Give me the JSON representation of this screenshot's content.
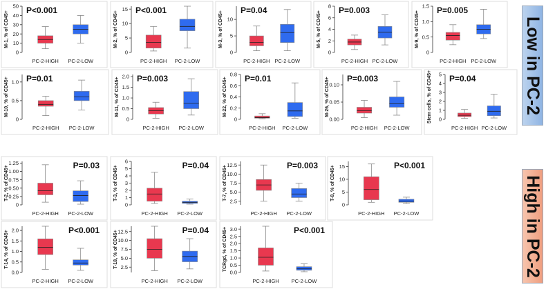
{
  "banners": {
    "low": "Low in PC-2",
    "high": "High in PC-2"
  },
  "chart_data": [
    {
      "type": "box",
      "ylabel": "M-1, % of CD45+",
      "pvalue": "P<0.001",
      "categories": [
        "PC-2-HIGH",
        "PC-2-LOW"
      ],
      "yticks": [
        "0",
        "10",
        "20",
        "30",
        "40",
        "50"
      ],
      "ylim": [
        0,
        50
      ],
      "series": [
        {
          "name": "PC-2-HIGH",
          "min": 4,
          "q1": 10,
          "median": 14,
          "q3": 18,
          "max": 28,
          "outliers": []
        },
        {
          "name": "PC-2-LOW",
          "min": 10,
          "q1": 20,
          "median": 25,
          "q3": 30,
          "max": 40,
          "outliers": []
        }
      ]
    },
    {
      "type": "box",
      "ylabel": "M-2, % of CD45+",
      "pvalue": "P<0.001",
      "categories": [
        "PC-2-HIGH",
        "PC-2-LOW"
      ],
      "yticks": [
        "0",
        "5",
        "10",
        "15"
      ],
      "ylim": [
        0,
        16
      ],
      "series": [
        {
          "name": "PC-2-HIGH",
          "min": 0.5,
          "q1": 1.5,
          "median": 3.5,
          "q3": 6,
          "max": 9,
          "outliers": []
        },
        {
          "name": "PC-2-LOW",
          "min": 1.5,
          "q1": 7.5,
          "median": 9,
          "q3": 11.5,
          "max": 16,
          "outliers": []
        }
      ]
    },
    {
      "type": "box",
      "ylabel": "M-3, % of CD45+",
      "pvalue": "P=0.04",
      "categories": [
        "PC-2-HIGH",
        "PC-2-LOW"
      ],
      "yticks": [
        "0",
        "5",
        "10"
      ],
      "ylim": [
        0,
        14
      ],
      "series": [
        {
          "name": "PC-2-HIGH",
          "min": 0.5,
          "q1": 2,
          "median": 3,
          "q3": 5,
          "max": 8,
          "outliers": []
        },
        {
          "name": "PC-2-LOW",
          "min": 0.5,
          "q1": 3,
          "median": 6,
          "q3": 8.5,
          "max": 13,
          "outliers": []
        }
      ]
    },
    {
      "type": "box",
      "ylabel": "M-5, % of CD45+",
      "pvalue": "P=0.003",
      "categories": [
        "PC-2-HIGH",
        "PC-2-LOW"
      ],
      "yticks": [
        "0",
        "2",
        "4",
        "6",
        "8"
      ],
      "ylim": [
        0,
        8
      ],
      "series": [
        {
          "name": "PC-2-HIGH",
          "min": 0.5,
          "q1": 1.3,
          "median": 1.8,
          "q3": 2.3,
          "max": 3,
          "outliers": []
        },
        {
          "name": "PC-2-LOW",
          "min": 1.3,
          "q1": 2.5,
          "median": 3.5,
          "q3": 4.5,
          "max": 6.5,
          "outliers": []
        }
      ]
    },
    {
      "type": "box",
      "ylabel": "M-9, % of CD45+",
      "pvalue": "P=0.005",
      "categories": [
        "PC-2-HIGH",
        "PC-2-LOW"
      ],
      "yticks": [
        "0",
        "0.5",
        "1.0",
        "1.5"
      ],
      "ylim": [
        0,
        1.5
      ],
      "series": [
        {
          "name": "PC-2-HIGH",
          "min": 0.25,
          "q1": 0.4,
          "median": 0.55,
          "q3": 0.65,
          "max": 0.9,
          "outliers": []
        },
        {
          "name": "PC-2-LOW",
          "min": 0.45,
          "q1": 0.6,
          "median": 0.75,
          "q3": 0.9,
          "max": 1.4,
          "outliers": []
        }
      ]
    },
    {
      "type": "box",
      "ylabel": "M-10, % of CD45+",
      "pvalue": "P=0.01",
      "categories": [
        "PC-2-HIGH",
        "PC-2-LOW"
      ],
      "yticks": [
        "0",
        "0.5",
        "1.0"
      ],
      "ylim": [
        0,
        1.2
      ],
      "series": [
        {
          "name": "PC-2-HIGH",
          "min": 0.1,
          "q1": 0.35,
          "median": 0.4,
          "q3": 0.5,
          "max": 0.62,
          "outliers": []
        },
        {
          "name": "PC-2-LOW",
          "min": 0.25,
          "q1": 0.5,
          "median": 0.6,
          "q3": 0.75,
          "max": 1.05,
          "outliers": []
        }
      ]
    },
    {
      "type": "box",
      "ylabel": "M-11, % of CD45+",
      "pvalue": "P=0.003",
      "categories": [
        "PC-2-HIGH",
        "PC-2-LOW"
      ],
      "yticks": [
        "0",
        "0.5",
        "1.0",
        "1.5",
        "2.0"
      ],
      "ylim": [
        0,
        2.1
      ],
      "series": [
        {
          "name": "PC-2-HIGH",
          "min": 0.05,
          "q1": 0.25,
          "median": 0.4,
          "q3": 0.55,
          "max": 0.8,
          "outliers": []
        },
        {
          "name": "PC-2-LOW",
          "min": 0.2,
          "q1": 0.5,
          "median": 0.75,
          "q3": 1.3,
          "max": 1.9,
          "outliers": []
        }
      ]
    },
    {
      "type": "box",
      "ylabel": "M-22, % of CD45+",
      "pvalue": "P=0.01",
      "categories": [
        "PC-2-HIGH",
        "PC-2-LOW"
      ],
      "yticks": [
        "0",
        "0.2",
        "0.4",
        "0.6",
        "0.8"
      ],
      "ylim": [
        0,
        0.8
      ],
      "series": [
        {
          "name": "PC-2-HIGH",
          "min": 0.01,
          "q1": 0.02,
          "median": 0.03,
          "q3": 0.06,
          "max": 0.1,
          "outliers": []
        },
        {
          "name": "PC-2-LOW",
          "min": 0.02,
          "q1": 0.05,
          "median": 0.15,
          "q3": 0.3,
          "max": 0.65,
          "outliers": []
        }
      ]
    },
    {
      "type": "box",
      "ylabel": "M-26, % of CD45+",
      "pvalue": "P=0.003",
      "categories": [
        "PC-2-HIGH",
        "PC-2-LOW"
      ],
      "yticks": [
        "0.00",
        "0.05",
        "0.10"
      ],
      "ylim": [
        0,
        0.13
      ],
      "series": [
        {
          "name": "PC-2-HIGH",
          "min": 0.005,
          "q1": 0.018,
          "median": 0.025,
          "q3": 0.035,
          "max": 0.055,
          "outliers": []
        },
        {
          "name": "PC-2-LOW",
          "min": 0.012,
          "q1": 0.035,
          "median": 0.045,
          "q3": 0.065,
          "max": 0.11,
          "outliers": []
        }
      ]
    },
    {
      "type": "box",
      "ylabel": "Stem cells, % of CD45+",
      "pvalue": "P=0.04",
      "categories": [
        "PC-2-HIGH",
        "PC-2-LOW"
      ],
      "yticks": [
        "0",
        "1",
        "2",
        "3",
        "4",
        "5"
      ],
      "ylim": [
        0,
        5
      ],
      "series": [
        {
          "name": "PC-2-HIGH",
          "min": 0.1,
          "q1": 0.3,
          "median": 0.45,
          "q3": 0.7,
          "max": 1.1,
          "outliers": []
        },
        {
          "name": "PC-2-LOW",
          "min": 0.15,
          "q1": 0.4,
          "median": 0.9,
          "q3": 1.5,
          "max": 2.8,
          "outliers": []
        }
      ]
    },
    {
      "type": "box",
      "ylabel": "T-2, % of CD45+",
      "pvalue": "P=0.03",
      "categories": [
        "PC-2-HIGH",
        "PC-2-LOW"
      ],
      "yticks": [
        "0",
        "0.25",
        "0.50",
        "0.75",
        "1.00",
        "1.25"
      ],
      "ylim": [
        0,
        1.3
      ],
      "series": [
        {
          "name": "PC-2-HIGH",
          "min": 0.08,
          "q1": 0.3,
          "median": 0.42,
          "q3": 0.65,
          "max": 1.2,
          "outliers": []
        },
        {
          "name": "PC-2-LOW",
          "min": 0.02,
          "q1": 0.1,
          "median": 0.28,
          "q3": 0.42,
          "max": 0.72,
          "outliers": []
        }
      ]
    },
    {
      "type": "box",
      "ylabel": "T-3, % of CD45+",
      "pvalue": "P=0.04",
      "categories": [
        "PC-2-HIGH",
        "PC-2-LOW"
      ],
      "yticks": [
        "0",
        "1",
        "2",
        "3",
        "4",
        "5",
        "6"
      ],
      "ylim": [
        0,
        6
      ],
      "series": [
        {
          "name": "PC-2-HIGH",
          "min": 0.2,
          "q1": 0.5,
          "median": 1.5,
          "q3": 2.3,
          "max": 4.5,
          "outliers": []
        },
        {
          "name": "PC-2-LOW",
          "min": 0.1,
          "q1": 0.2,
          "median": 0.35,
          "q3": 0.5,
          "max": 0.8,
          "outliers": []
        }
      ]
    },
    {
      "type": "box",
      "ylabel": "T-7, % of CD45+",
      "pvalue": "P=0.003",
      "categories": [
        "PC-2-HIGH",
        "PC-2-LOW"
      ],
      "yticks": [
        "2.5",
        "5.0",
        "7.5",
        "10.0",
        "12.5"
      ],
      "ylim": [
        1.5,
        13.5
      ],
      "series": [
        {
          "name": "PC-2-HIGH",
          "min": 2.5,
          "q1": 5.5,
          "median": 7,
          "q3": 8.5,
          "max": 12.5,
          "outliers": []
        },
        {
          "name": "PC-2-LOW",
          "min": 2.5,
          "q1": 3.5,
          "median": 4.5,
          "q3": 6,
          "max": 7.5,
          "outliers": []
        }
      ]
    },
    {
      "type": "box",
      "ylabel": "T-8, % of CD45+",
      "pvalue": "P<0.001",
      "categories": [
        "PC-2-HIGH",
        "PC-2-LOW"
      ],
      "yticks": [
        "0",
        "5",
        "10",
        "15"
      ],
      "ylim": [
        0,
        17
      ],
      "series": [
        {
          "name": "PC-2-HIGH",
          "min": 1,
          "q1": 2,
          "median": 6,
          "q3": 11,
          "max": 16,
          "outliers": []
        },
        {
          "name": "PC-2-LOW",
          "min": 0.5,
          "q1": 1,
          "median": 1.5,
          "q3": 2.2,
          "max": 3,
          "outliers": []
        }
      ]
    },
    {
      "type": "box",
      "ylabel": "T-14, % of CD45+",
      "pvalue": "P<0.001",
      "categories": [
        "PC-2-HIGH",
        "PC-2-LOW"
      ],
      "yticks": [
        "0.0",
        "0.5",
        "1.0",
        "1.5",
        "2.0"
      ],
      "ylim": [
        0,
        2.2
      ],
      "series": [
        {
          "name": "PC-2-HIGH",
          "min": 0.15,
          "q1": 0.85,
          "median": 1.2,
          "q3": 1.6,
          "max": 2.2,
          "outliers": []
        },
        {
          "name": "PC-2-LOW",
          "min": 0.1,
          "q1": 0.35,
          "median": 0.45,
          "q3": 0.6,
          "max": 1.15,
          "outliers": []
        }
      ]
    },
    {
      "type": "box",
      "ylabel": "T-18, % of CD45+",
      "pvalue": "P=0.04",
      "categories": [
        "PC-2-HIGH",
        "PC-2-LOW"
      ],
      "yticks": [
        "2.5",
        "5.0",
        "7.5",
        "10.0",
        "12.5"
      ],
      "ylim": [
        1,
        14
      ],
      "series": [
        {
          "name": "PC-2-HIGH",
          "min": 1.5,
          "q1": 5,
          "median": 7.5,
          "q3": 10.5,
          "max": 14,
          "outliers": []
        },
        {
          "name": "PC-2-LOW",
          "min": 2,
          "q1": 4,
          "median": 5.5,
          "q3": 7,
          "max": 10.5,
          "outliers": []
        }
      ]
    },
    {
      "type": "box",
      "ylabel": "TCRgd, % of CD45+",
      "pvalue": "P<0.001",
      "categories": [
        "PC-2-HIGH",
        "PC-2-LOW"
      ],
      "yticks": [
        "0.0",
        "0.5",
        "1.0",
        "1.5",
        "2.0",
        "2.5",
        "3.0"
      ],
      "ylim": [
        0,
        3.2
      ],
      "series": [
        {
          "name": "PC-2-HIGH",
          "min": 0.1,
          "q1": 0.5,
          "median": 1.05,
          "q3": 1.7,
          "max": 3.2,
          "outliers": []
        },
        {
          "name": "PC-2-LOW",
          "min": 0.05,
          "q1": 0.15,
          "median": 0.25,
          "q3": 0.4,
          "max": 0.6,
          "outliers": []
        }
      ]
    }
  ],
  "colors": {
    "high": "#e8384f",
    "low": "#2f6bef"
  }
}
